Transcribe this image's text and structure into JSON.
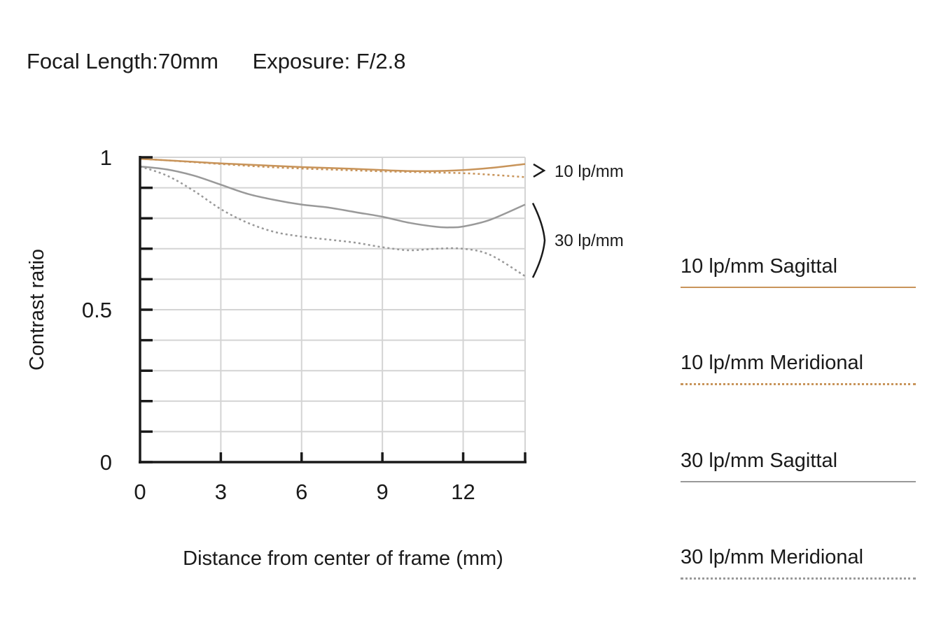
{
  "header": {
    "focal_length": "Focal Length:70mm",
    "exposure": "Exposure: F/2.8"
  },
  "chart_data": {
    "type": "line",
    "xlabel": "Distance from center of frame (mm)",
    "ylabel": "Contrast ratio",
    "xlim": [
      0,
      14.3
    ],
    "ylim": [
      0,
      1
    ],
    "xticks": [
      0,
      3,
      6,
      9,
      12
    ],
    "xtick_labels": [
      "0",
      "3",
      "6",
      "9",
      "12"
    ],
    "yticks": [
      0,
      0.1,
      0.2,
      0.3,
      0.4,
      0.5,
      0.6,
      0.7,
      0.8,
      0.9,
      1.0
    ],
    "ytick_labels": [
      "0",
      "0.5",
      "1"
    ],
    "ytick_label_values": [
      0,
      0.5,
      1
    ],
    "grid": true,
    "series": [
      {
        "name": "10 lp/mm Sagittal",
        "color": "#c8945a",
        "style": "solid",
        "x": [
          0,
          1,
          2,
          3,
          4,
          5,
          6,
          7,
          8,
          9,
          10,
          11,
          12,
          13,
          14.3
        ],
        "y": [
          0.995,
          0.99,
          0.985,
          0.98,
          0.976,
          0.972,
          0.968,
          0.965,
          0.962,
          0.958,
          0.955,
          0.955,
          0.958,
          0.965,
          0.978
        ]
      },
      {
        "name": "10 lp/mm Meridional",
        "color": "#c8945a",
        "style": "dotted",
        "x": [
          0,
          1,
          2,
          3,
          4,
          5,
          6,
          7,
          8,
          9,
          10,
          11,
          12,
          13,
          14.3
        ],
        "y": [
          0.995,
          0.99,
          0.984,
          0.978,
          0.972,
          0.967,
          0.963,
          0.96,
          0.957,
          0.954,
          0.952,
          0.95,
          0.948,
          0.943,
          0.935
        ]
      },
      {
        "name": "30 lp/mm Sagittal",
        "color": "#999999",
        "style": "solid",
        "x": [
          0,
          1,
          2,
          3,
          4,
          5,
          6,
          7,
          8,
          9,
          10,
          11,
          11.5,
          12,
          13,
          14.3
        ],
        "y": [
          0.97,
          0.96,
          0.94,
          0.91,
          0.88,
          0.86,
          0.845,
          0.835,
          0.82,
          0.805,
          0.785,
          0.772,
          0.77,
          0.773,
          0.795,
          0.845
        ]
      },
      {
        "name": "30 lp/mm Meridional",
        "color": "#999999",
        "style": "dotted",
        "x": [
          0,
          1,
          2,
          3,
          4,
          5,
          6,
          7,
          8,
          9,
          10,
          11,
          12,
          13,
          14.3
        ],
        "y": [
          0.97,
          0.94,
          0.89,
          0.83,
          0.785,
          0.755,
          0.74,
          0.73,
          0.72,
          0.705,
          0.695,
          0.7,
          0.7,
          0.68,
          0.61
        ]
      }
    ],
    "annotations": [
      "10 lp/mm",
      "30 lp/mm"
    ]
  },
  "legend": [
    {
      "label": "10 lp/mm Sagittal",
      "color": "#c8945a",
      "style": "solid"
    },
    {
      "label": "10 lp/mm Meridional",
      "color": "#c8945a",
      "style": "dotted"
    },
    {
      "label": "30 lp/mm Sagittal",
      "color": "#999999",
      "style": "solid"
    },
    {
      "label": "30 lp/mm Meridional",
      "color": "#999999",
      "style": "dotted"
    }
  ]
}
